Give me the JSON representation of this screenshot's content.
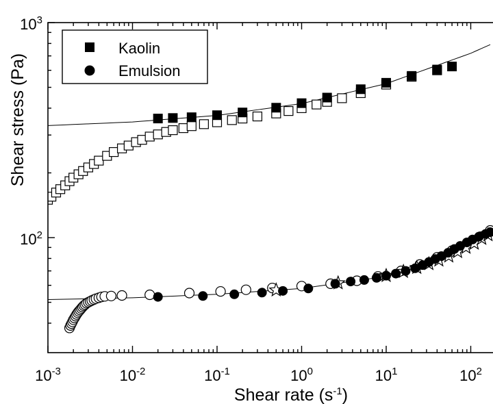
{
  "chart_data": {
    "type": "scatter",
    "xscale": "log",
    "yscale": "log",
    "xlim": [
      0.001,
      170
    ],
    "ylim": [
      38,
      1000
    ],
    "xlabel": {
      "base": "Shear rate (s",
      "sup": "-1",
      "tail": ")"
    },
    "ylabel": "Shear stress (Pa)",
    "x_ticks": [
      {
        "value": 0.001,
        "base": "10",
        "exp": "-3"
      },
      {
        "value": 0.01,
        "base": "10",
        "exp": "-2"
      },
      {
        "value": 0.1,
        "base": "10",
        "exp": "-1"
      },
      {
        "value": 1,
        "base": "10",
        "exp": "0"
      },
      {
        "value": 10,
        "base": "10",
        "exp": "1"
      },
      {
        "value": 100,
        "base": "10",
        "exp": "2"
      }
    ],
    "y_ticks": [
      {
        "value": 100,
        "base": "10",
        "exp": "2"
      },
      {
        "value": 1000,
        "base": "10",
        "exp": "3"
      }
    ],
    "legend": {
      "position": "top-left",
      "entries": [
        {
          "label": "Kaolin",
          "marker": "filled-square"
        },
        {
          "label": "Emulsion",
          "marker": "filled-circle"
        }
      ]
    },
    "series": [
      {
        "name": "Kaolin",
        "marker": "filled-square",
        "x": [
          0.02,
          0.03,
          0.05,
          0.1,
          0.2,
          0.5,
          1,
          2,
          5,
          10,
          20,
          40,
          60
        ],
        "y": [
          358,
          360,
          363,
          371,
          382,
          402,
          422,
          448,
          490,
          525,
          565,
          605,
          625
        ]
      },
      {
        "marker": "open-square",
        "x": [
          0.001,
          0.0011,
          0.00125,
          0.0014,
          0.0016,
          0.0018,
          0.002,
          0.0023,
          0.0026,
          0.003,
          0.0035,
          0.004,
          0.005,
          0.006,
          0.0075,
          0.009,
          0.011,
          0.013,
          0.016,
          0.02,
          0.025,
          0.03,
          0.04,
          0.05,
          0.07,
          0.1,
          0.15,
          0.2,
          0.3,
          0.5,
          0.7,
          1,
          1.5,
          2,
          3,
          5,
          10,
          20,
          40
        ],
        "y": [
          150,
          155,
          162,
          168,
          175,
          183,
          190,
          197,
          204,
          212,
          220,
          228,
          240,
          250,
          260,
          268,
          278,
          285,
          295,
          302,
          310,
          316,
          323,
          330,
          337,
          344,
          352,
          358,
          366,
          378,
          388,
          400,
          416,
          428,
          445,
          470,
          515,
          560,
          600
        ]
      },
      {
        "name": "Emulsion",
        "marker": "filled-circle",
        "x": [
          0.02,
          0.068,
          0.16,
          0.34,
          0.6,
          1.2,
          2.5,
          3.8,
          5.5,
          7.7,
          10,
          13,
          17,
          22,
          27,
          32,
          38,
          45,
          54,
          64,
          75,
          90,
          105,
          125,
          150,
          170
        ],
        "y": [
          53,
          53.5,
          54.5,
          55.5,
          56.5,
          58,
          61,
          62.5,
          63.5,
          65,
          66.5,
          68,
          70,
          72,
          74.5,
          77,
          79.5,
          82,
          85,
          88.5,
          91.5,
          95,
          98,
          101,
          104,
          106
        ]
      },
      {
        "marker": "open-circle",
        "x": [
          0.0018,
          0.00185,
          0.0019,
          0.00195,
          0.002,
          0.00206,
          0.00212,
          0.00218,
          0.00225,
          0.00232,
          0.0024,
          0.00248,
          0.00256,
          0.00265,
          0.00275,
          0.00286,
          0.003,
          0.00315,
          0.0033,
          0.0035,
          0.0037,
          0.004,
          0.0043,
          0.0047,
          0.0056,
          0.0075,
          0.016,
          0.047,
          0.11,
          0.22,
          0.45,
          1,
          2.2,
          4.5,
          8,
          15,
          25,
          40,
          60,
          90,
          130,
          170
        ],
        "y": [
          38,
          39,
          39.8,
          40.6,
          41.5,
          42.3,
          43.1,
          43.9,
          44.7,
          45.4,
          46.1,
          46.8,
          47.5,
          48.2,
          48.8,
          49.5,
          50,
          50.5,
          51,
          51.5,
          52,
          52.5,
          53,
          53.3,
          53.5,
          53.8,
          54.2,
          55.2,
          56.2,
          57.2,
          58.3,
          59.5,
          61,
          63,
          66,
          70,
          75,
          81,
          87,
          94,
          101,
          108
        ]
      },
      {
        "marker": "open-star",
        "x": [
          0.5,
          2.7,
          10,
          16,
          23,
          32,
          42,
          55,
          70,
          88,
          110,
          135,
          160
        ],
        "y": [
          57,
          61.5,
          66.5,
          69.5,
          72.5,
          75.5,
          78.5,
          82,
          86,
          90,
          94,
          99,
          103
        ]
      },
      {
        "marker": "line",
        "x": [
          0.001,
          0.01,
          0.1,
          1,
          10,
          100,
          170
        ],
        "y": [
          332,
          345,
          370,
          420,
          520,
          720,
          790
        ]
      },
      {
        "marker": "line",
        "x": [
          0.001,
          0.01,
          0.1,
          1,
          10,
          100,
          170
        ],
        "y": [
          51.5,
          52.5,
          54.5,
          58,
          66,
          95,
          108
        ]
      }
    ]
  }
}
